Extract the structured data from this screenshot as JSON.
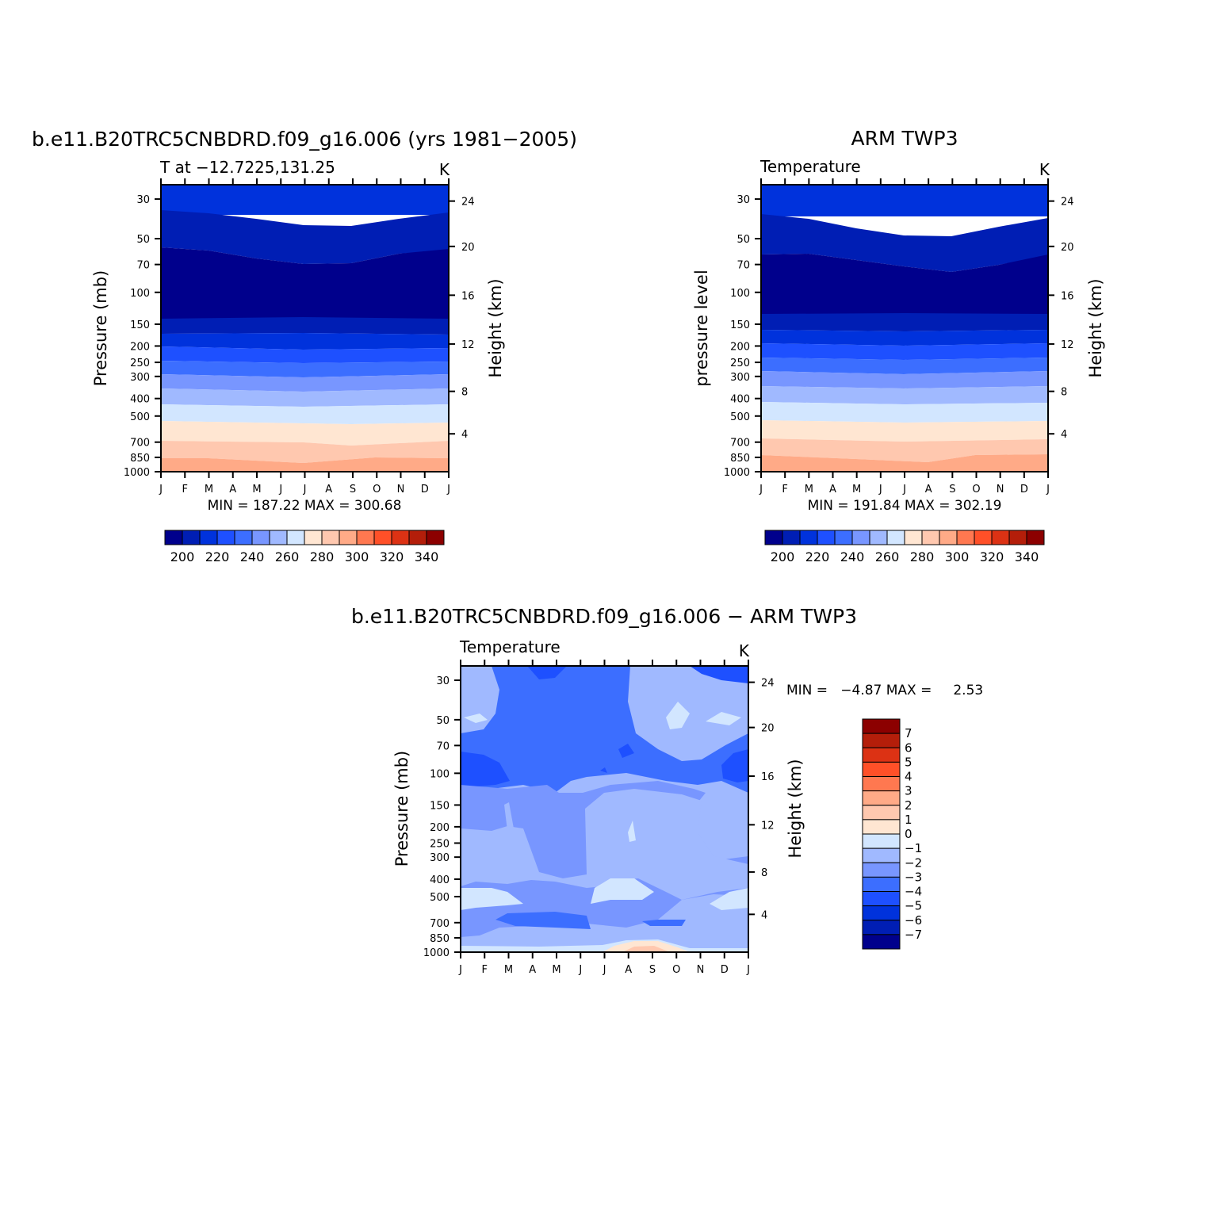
{
  "chart_data": [
    {
      "type": "heatmap",
      "title": "b.e11.B20TRC5CNBDRD.f09_g16.006 (yrs 1981−2005)",
      "subtitle_left": "T at −12.7225,131.25",
      "subtitle_right": "K",
      "ylabel": "Pressure (mb)",
      "ylabel_right": "Height (km)",
      "x_ticks": [
        "J",
        "F",
        "M",
        "A",
        "M",
        "J",
        "J",
        "A",
        "S",
        "O",
        "N",
        "D",
        "J"
      ],
      "y_ticks": [
        "30",
        "50",
        "70",
        "100",
        "150",
        "200",
        "250",
        "300",
        "400",
        "500",
        "700",
        "850",
        "1000"
      ],
      "y_ticks_right": [
        "24",
        "20",
        "16",
        "12",
        "8",
        "4"
      ],
      "stats": "MIN = 187.22 MAX = 300.68",
      "colorbar_labels": [
        "200",
        "220",
        "240",
        "260",
        "280",
        "300",
        "320",
        "340"
      ],
      "contour_levels": [
        190,
        200,
        210,
        220,
        230,
        240,
        250,
        260,
        270,
        280,
        290,
        300,
        310,
        320,
        330,
        340
      ],
      "pressure_levels": [
        30,
        50,
        70,
        100,
        150,
        200,
        250,
        300,
        400,
        500,
        700,
        850,
        1000
      ],
      "months": [
        "Jan",
        "Feb",
        "Mar",
        "Apr",
        "May",
        "Jun",
        "Jul",
        "Aug",
        "Sep",
        "Oct",
        "Nov",
        "Dec",
        "Jan"
      ],
      "colors": [
        "#00008c",
        "#001eb4",
        "#0032dc",
        "#1e50ff",
        "#3c6eff",
        "#7896ff",
        "#a0b9ff",
        "#d2e6ff",
        "#ffe6d2",
        "#ffc8af",
        "#ffaa87",
        "#ff7850",
        "#ff5028",
        "#dc3214",
        "#b41e0a",
        "#8c0000"
      ]
    },
    {
      "type": "heatmap",
      "title": "ARM TWP3",
      "subtitle_left": "Temperature",
      "subtitle_right": "K",
      "ylabel": "pressure level",
      "ylabel_right": "Height (km)",
      "x_ticks": [
        "J",
        "F",
        "M",
        "A",
        "M",
        "J",
        "J",
        "A",
        "S",
        "O",
        "N",
        "D",
        "J"
      ],
      "y_ticks": [
        "30",
        "50",
        "70",
        "100",
        "150",
        "200",
        "250",
        "300",
        "400",
        "500",
        "700",
        "850",
        "1000"
      ],
      "y_ticks_right": [
        "24",
        "20",
        "16",
        "12",
        "8",
        "4"
      ],
      "stats": "MIN = 191.84 MAX = 302.19",
      "colorbar_labels": [
        "200",
        "220",
        "240",
        "260",
        "280",
        "300",
        "320",
        "340"
      ],
      "contour_levels": [
        190,
        200,
        210,
        220,
        230,
        240,
        250,
        260,
        270,
        280,
        290,
        300,
        310,
        320,
        330,
        340
      ],
      "pressure_levels": [
        30,
        50,
        70,
        100,
        150,
        200,
        250,
        300,
        400,
        500,
        700,
        850,
        1000
      ],
      "colors": [
        "#00008c",
        "#001eb4",
        "#0032dc",
        "#1e50ff",
        "#3c6eff",
        "#7896ff",
        "#a0b9ff",
        "#d2e6ff",
        "#ffe6d2",
        "#ffc8af",
        "#ffaa87",
        "#ff7850",
        "#ff5028",
        "#dc3214",
        "#b41e0a",
        "#8c0000"
      ]
    },
    {
      "type": "heatmap",
      "title": "b.e11.B20TRC5CNBDRD.f09_g16.006 − ARM TWP3",
      "subtitle_left": "Temperature",
      "subtitle_right": "K",
      "ylabel": "Pressure (mb)",
      "ylabel_right": "Height (km)",
      "x_ticks": [
        "J",
        "F",
        "M",
        "A",
        "M",
        "J",
        "J",
        "A",
        "S",
        "O",
        "N",
        "D",
        "J"
      ],
      "y_ticks": [
        "30",
        "50",
        "70",
        "100",
        "150",
        "200",
        "250",
        "300",
        "400",
        "500",
        "700",
        "850",
        "1000"
      ],
      "y_ticks_right": [
        "24",
        "20",
        "16",
        "12",
        "8",
        "4"
      ],
      "stats": "MIN =   −4.87 MAX =     2.53",
      "colorbar_labels": [
        "7",
        "6",
        "5",
        "4",
        "3",
        "2",
        "1",
        "0",
        "−1",
        "−2",
        "−3",
        "−4",
        "−5",
        "−6",
        "−7"
      ],
      "contour_levels": [
        -7,
        -6,
        -5,
        -4,
        -3,
        -2,
        -1,
        0,
        1,
        2,
        3,
        4,
        5,
        6,
        7
      ],
      "colors": [
        "#00008c",
        "#001eb4",
        "#0032dc",
        "#1e50ff",
        "#3c6eff",
        "#7896ff",
        "#a0b9ff",
        "#d2e6ff",
        "#ffe6d2",
        "#ffc8af",
        "#ffaa87",
        "#ff7850",
        "#ff5028",
        "#dc3214",
        "#b41e0a",
        "#8c0000"
      ]
    }
  ]
}
